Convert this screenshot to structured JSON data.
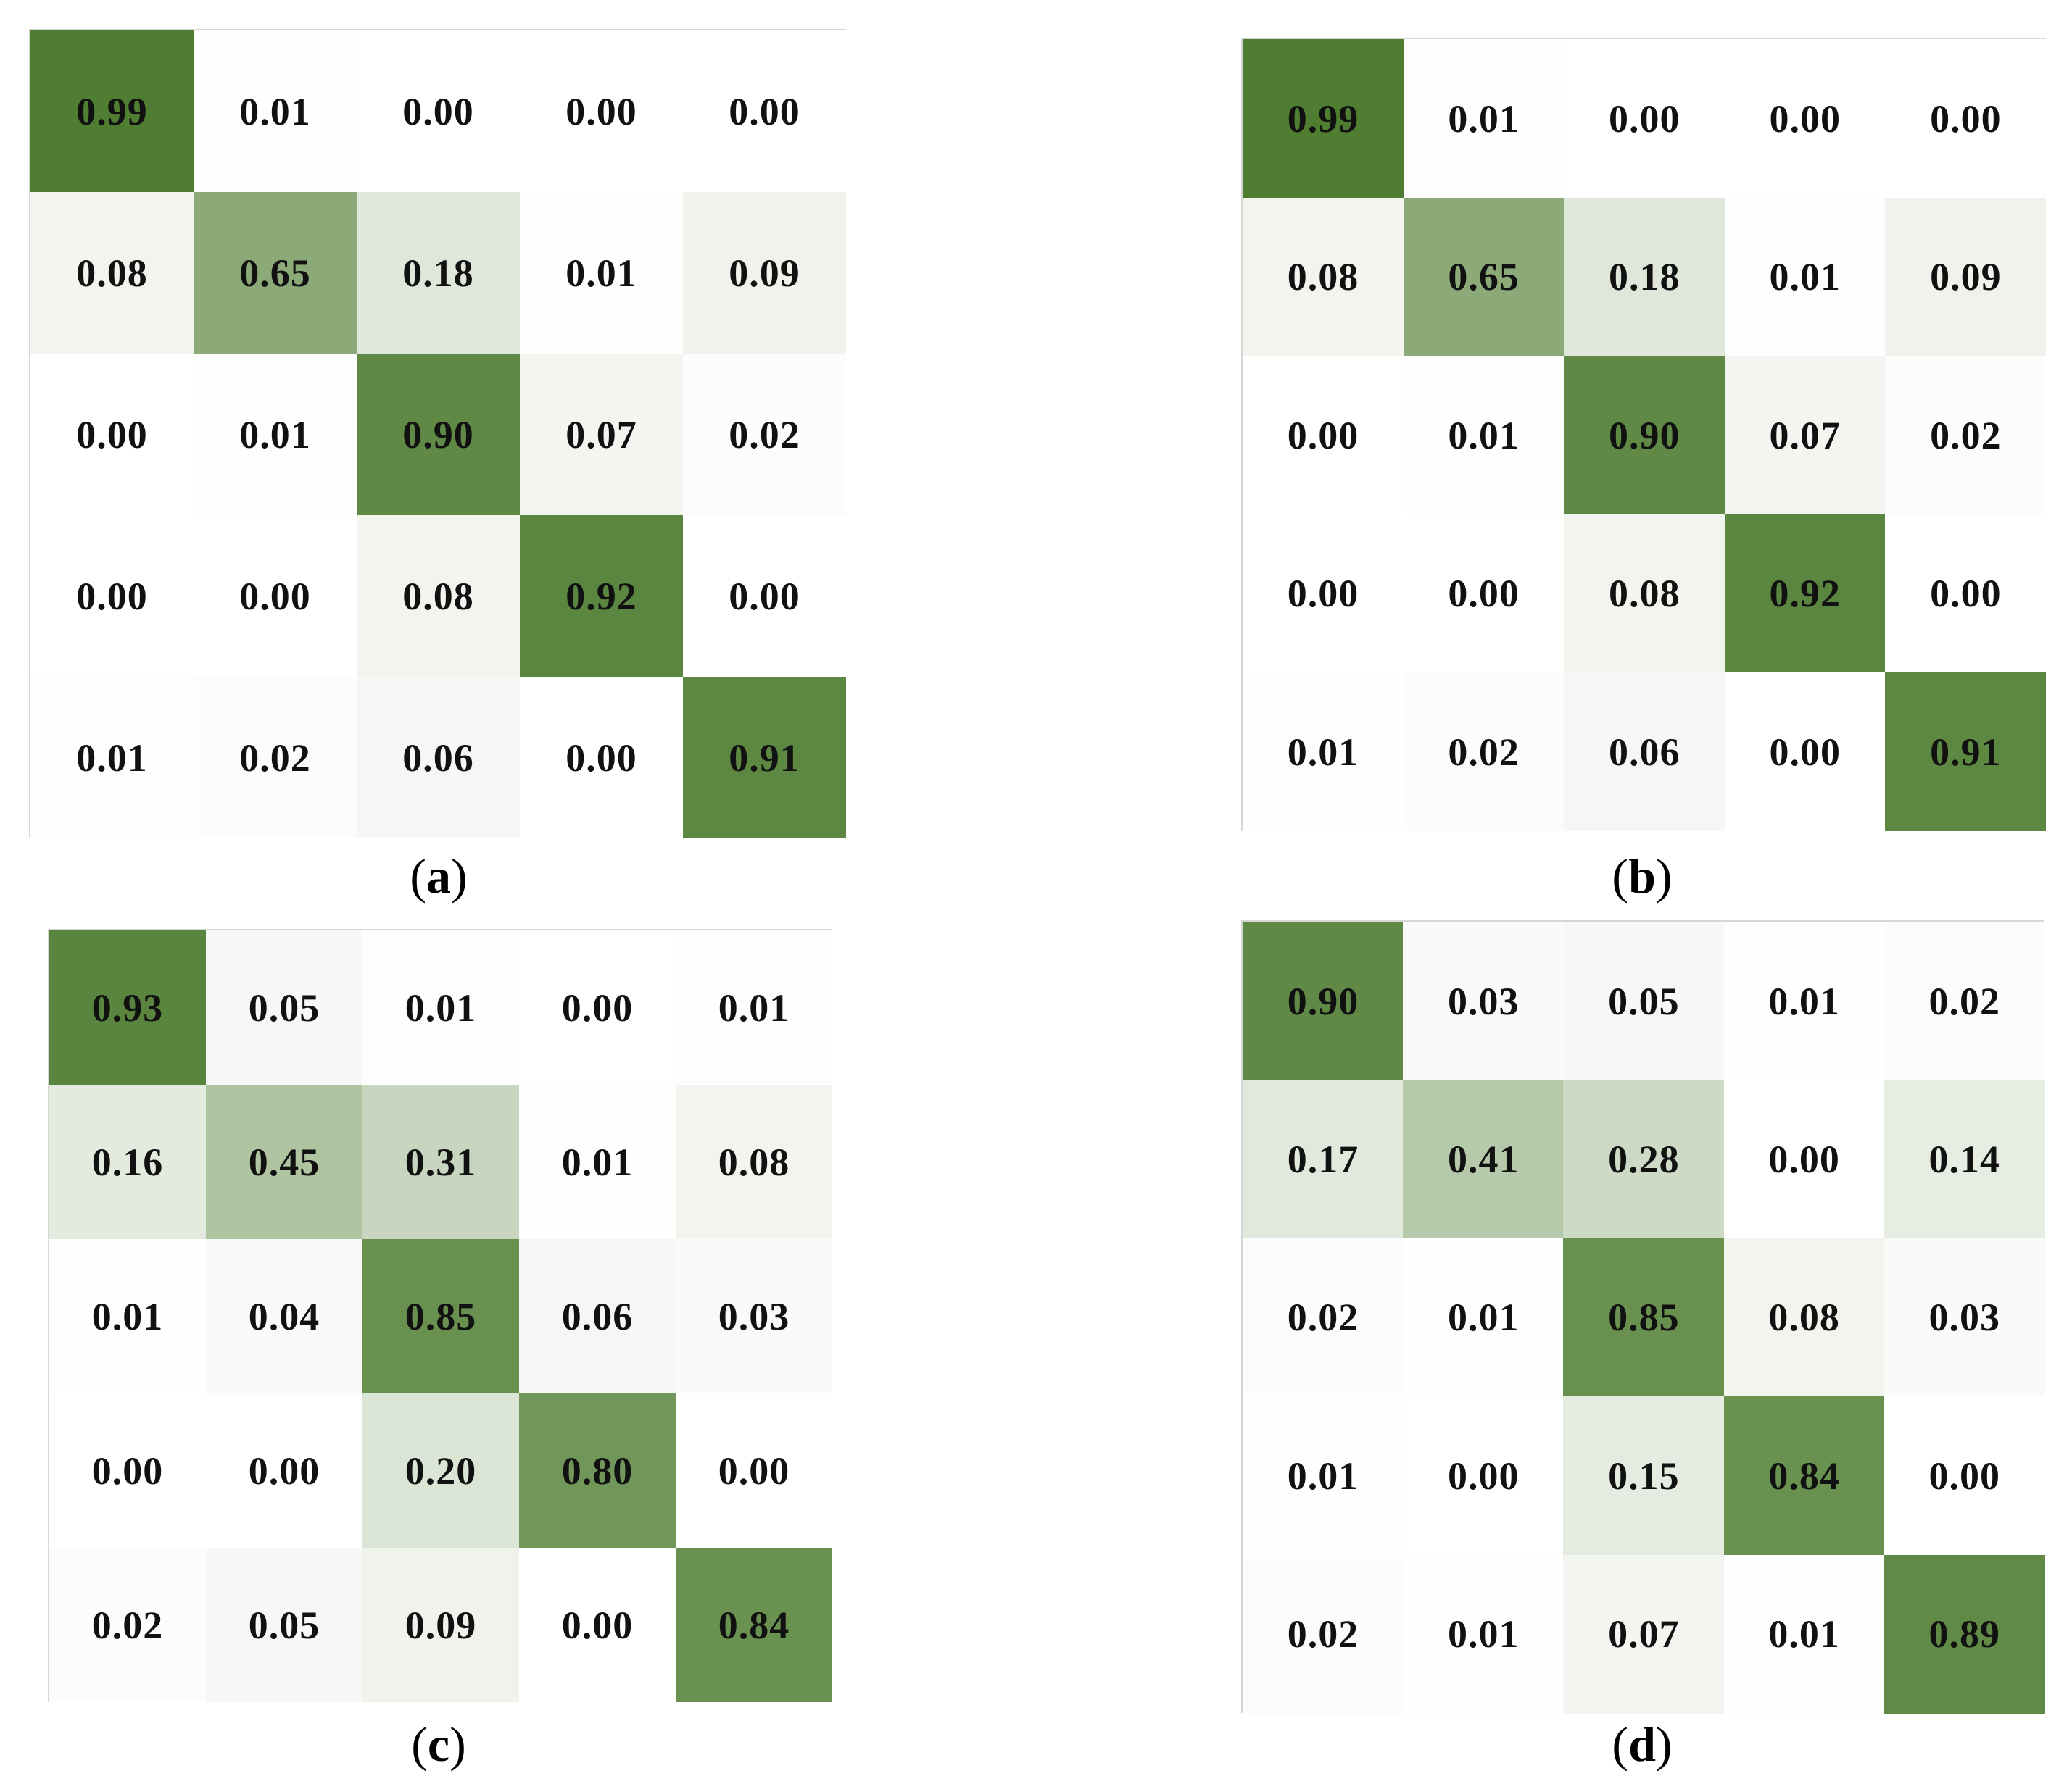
{
  "colors": {
    "high": "#4d7c2f",
    "low": "#ffffff"
  },
  "chart_data": [
    {
      "type": "heatmap",
      "label": "a",
      "values": [
        [
          "0.99",
          "0.01",
          "0.00",
          "0.00",
          "0.00"
        ],
        [
          "0.08",
          "0.65",
          "0.18",
          "0.01",
          "0.09"
        ],
        [
          "0.00",
          "0.01",
          "0.90",
          "0.07",
          "0.02"
        ],
        [
          "0.00",
          "0.00",
          "0.08",
          "0.92",
          "0.00"
        ],
        [
          "0.01",
          "0.02",
          "0.06",
          "0.00",
          "0.91"
        ]
      ]
    },
    {
      "type": "heatmap",
      "label": "b",
      "values": [
        [
          "0.99",
          "0.01",
          "0.00",
          "0.00",
          "0.00"
        ],
        [
          "0.08",
          "0.65",
          "0.18",
          "0.01",
          "0.09"
        ],
        [
          "0.00",
          "0.01",
          "0.90",
          "0.07",
          "0.02"
        ],
        [
          "0.00",
          "0.00",
          "0.08",
          "0.92",
          "0.00"
        ],
        [
          "0.01",
          "0.02",
          "0.06",
          "0.00",
          "0.91"
        ]
      ]
    },
    {
      "type": "heatmap",
      "label": "c",
      "values": [
        [
          "0.93",
          "0.05",
          "0.01",
          "0.00",
          "0.01"
        ],
        [
          "0.16",
          "0.45",
          "0.31",
          "0.01",
          "0.08"
        ],
        [
          "0.01",
          "0.04",
          "0.85",
          "0.06",
          "0.03"
        ],
        [
          "0.00",
          "0.00",
          "0.20",
          "0.80",
          "0.00"
        ],
        [
          "0.02",
          "0.05",
          "0.09",
          "0.00",
          "0.84"
        ]
      ]
    },
    {
      "type": "heatmap",
      "label": "d",
      "values": [
        [
          "0.90",
          "0.03",
          "0.05",
          "0.01",
          "0.02"
        ],
        [
          "0.17",
          "0.41",
          "0.28",
          "0.00",
          "0.14"
        ],
        [
          "0.02",
          "0.01",
          "0.85",
          "0.08",
          "0.03"
        ],
        [
          "0.01",
          "0.00",
          "0.15",
          "0.84",
          "0.00"
        ],
        [
          "0.02",
          "0.01",
          "0.07",
          "0.01",
          "0.89"
        ]
      ]
    }
  ]
}
